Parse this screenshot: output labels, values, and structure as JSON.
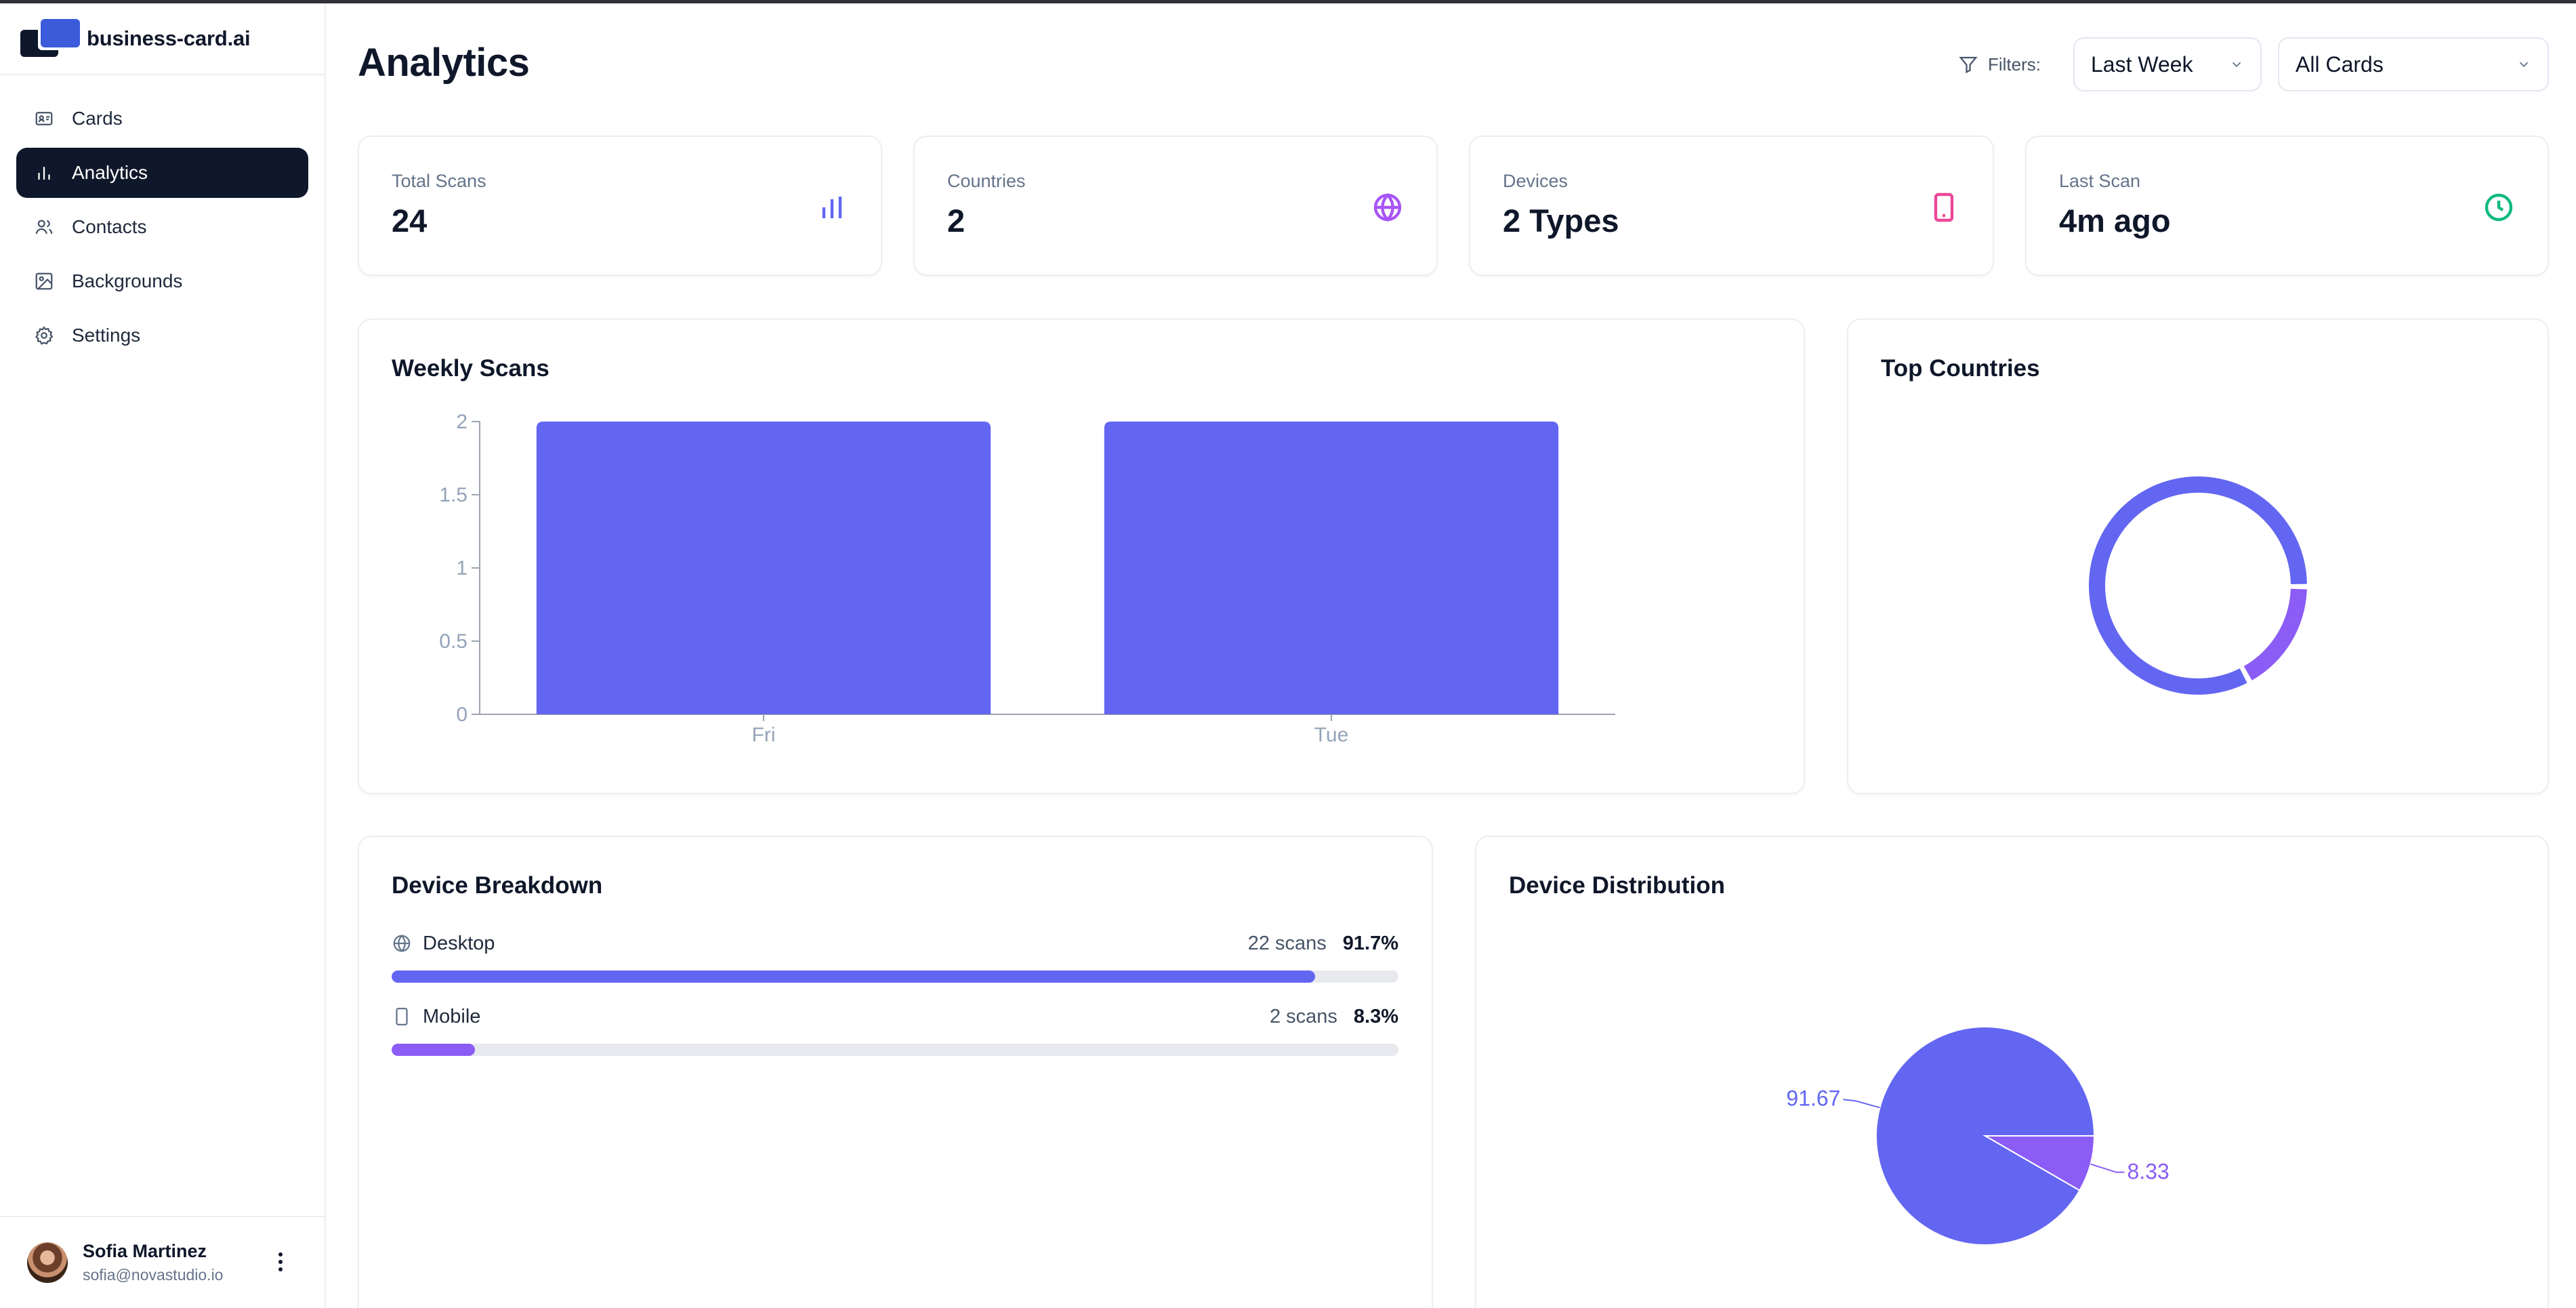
{
  "app": {
    "name": "business-card.ai"
  },
  "sidebar": {
    "items": [
      {
        "label": "Cards",
        "icon": "id-card-icon",
        "active": false
      },
      {
        "label": "Analytics",
        "icon": "bar-chart-icon",
        "active": true
      },
      {
        "label": "Contacts",
        "icon": "users-icon",
        "active": false
      },
      {
        "label": "Backgrounds",
        "icon": "image-icon",
        "active": false
      },
      {
        "label": "Settings",
        "icon": "gear-icon",
        "active": false
      }
    ],
    "user": {
      "name": "Sofia Martinez",
      "email": "sofia@novastudio.io"
    }
  },
  "header": {
    "title": "Analytics",
    "filters_label": "Filters:",
    "period": "Last Week",
    "cards": "All Cards"
  },
  "stats": [
    {
      "label": "Total Scans",
      "value": "24",
      "icon": "bar-chart-icon",
      "color": "#6366f1"
    },
    {
      "label": "Countries",
      "value": "2",
      "icon": "globe-icon",
      "color": "#a855f7"
    },
    {
      "label": "Devices",
      "value": "2 Types",
      "icon": "smartphone-icon",
      "color": "#ec4899"
    },
    {
      "label": "Last Scan",
      "value": "4m ago",
      "icon": "clock-icon",
      "color": "#10b981"
    }
  ],
  "weekly": {
    "title": "Weekly Scans"
  },
  "countries": {
    "title": "Top Countries"
  },
  "breakdown": {
    "title": "Device Breakdown",
    "rows": [
      {
        "label": "Desktop",
        "icon": "globe-icon",
        "count": "22 scans",
        "pct": "91.7%",
        "fraction": 0.917,
        "color": "#6366f1"
      },
      {
        "label": "Mobile",
        "icon": "smartphone-icon",
        "count": "2 scans",
        "pct": "8.3%",
        "fraction": 0.083,
        "color": "#8b5cf6"
      }
    ]
  },
  "distribution": {
    "title": "Device Distribution"
  },
  "chart_data": [
    {
      "type": "bar",
      "title": "Weekly Scans",
      "categories": [
        "Fri",
        "Tue"
      ],
      "values": [
        2,
        2
      ],
      "ylim": [
        0,
        2
      ],
      "yticks": [
        "0",
        "0.5",
        "1",
        "1.5",
        "2"
      ],
      "color": "#6366f1",
      "grid": false
    },
    {
      "type": "pie",
      "title": "Top Countries",
      "donut": true,
      "values": [
        83,
        17
      ],
      "colors": [
        "#6366f1",
        "#8b5cf6"
      ]
    },
    {
      "type": "pie",
      "title": "Device Distribution",
      "values": [
        91.67,
        8.33
      ],
      "labels": [
        "91.67",
        "8.33"
      ],
      "colors": [
        "#6366f1",
        "#8b5cf6"
      ]
    }
  ]
}
